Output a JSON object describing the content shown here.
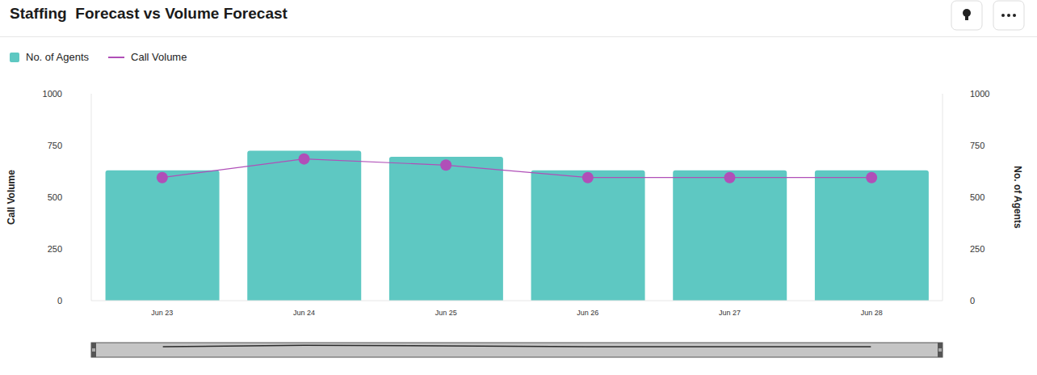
{
  "chart_data": {
    "type": "bar",
    "title": "Staffing  Forecast vs Volume Forecast",
    "categories": [
      "Jun 23",
      "Jun 24",
      "Jun 25",
      "Jun 26",
      "Jun 27",
      "Jun 28"
    ],
    "series": [
      {
        "name": "No. of Agents",
        "type": "bar",
        "color": "#5ec8c2",
        "axis": "y2",
        "values": [
          630,
          725,
          695,
          630,
          630,
          630
        ]
      },
      {
        "name": "Call Volume",
        "type": "line",
        "color": "#b04fb8",
        "marker": "circle",
        "values": [
          595,
          685,
          655,
          595,
          595,
          595
        ]
      }
    ],
    "ylabel": "Call Volume",
    "y2label": "No. of Agents",
    "ylim": [
      0,
      1000
    ],
    "yticks": [
      0,
      250,
      500,
      750,
      1000
    ],
    "y2lim": [
      0,
      1000
    ],
    "y2ticks": [
      0,
      250,
      500,
      750,
      1000
    ],
    "grid": false,
    "legend": "top left"
  }
}
